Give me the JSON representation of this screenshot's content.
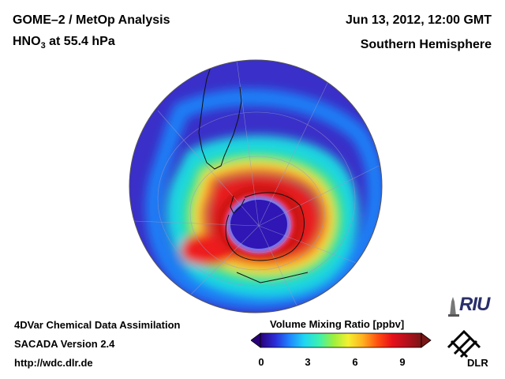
{
  "header": {
    "title": "GOME–2 / MetOp Analysis",
    "species_prefix": "HNO",
    "species_sub": "3",
    "level": " at 55.4 hPa",
    "date": "Jun 13, 2012, 12:00 GMT",
    "region": "Southern Hemisphere"
  },
  "footer": {
    "line1": "4DVar Chemical Data Assimilation",
    "line2": "SACADA Version 2.4",
    "url": "http://wdc.dlr.de"
  },
  "colorbar": {
    "title": "Volume Mixing Ratio [ppbv]",
    "ticks": [
      "0",
      "3",
      "6",
      "9"
    ],
    "min": 0,
    "max": 10.5,
    "colors": [
      "#2a007a",
      "#2b2bd8",
      "#1f86ff",
      "#1fd6f2",
      "#3cf0b0",
      "#9cf03c",
      "#f5f032",
      "#ffb020",
      "#ff5010",
      "#e8101a",
      "#b4101c",
      "#7a1616"
    ]
  },
  "logos": {
    "riu": "RIU",
    "dlr": "DLR"
  },
  "map": {
    "projection": "orthographic-south-polar",
    "field_colors": {
      "background": "#3a2fc8",
      "outer_band": "#1f7ef5",
      "teal": "#1fd6e0",
      "green": "#38e27a",
      "yellow": "#f2e83a",
      "orange": "#ff8a1e",
      "red": "#ee1c1c",
      "darkred": "#c51818",
      "vortex": "#2f16b5"
    }
  }
}
